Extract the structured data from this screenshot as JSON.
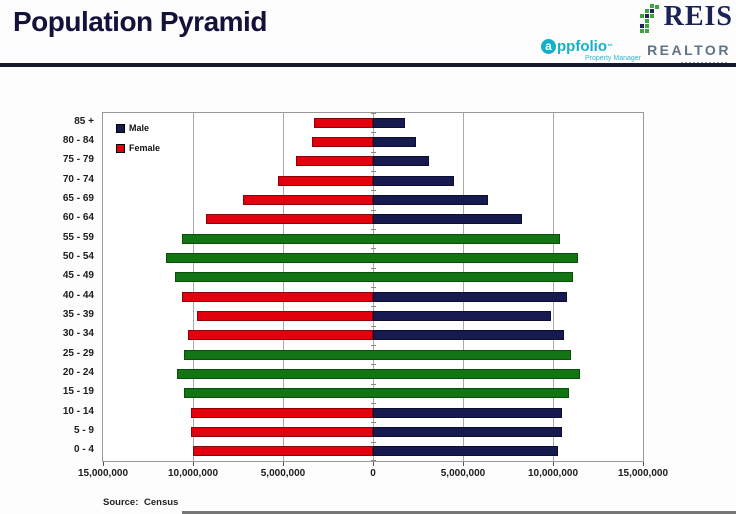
{
  "header": {
    "title": "Population Pyramid",
    "logos": {
      "reis": "REIS",
      "appfolio": "ppfolio",
      "appfolio_a": "a",
      "appfolio_tm": "™",
      "appfolio_sub": "Property Manager",
      "realtor": "REALTOR"
    }
  },
  "legend": {
    "male": "Male",
    "female": "Female"
  },
  "source": "Source: Census",
  "chart_data": {
    "type": "bar",
    "subtype": "population-pyramid",
    "title": "Population Pyramid",
    "orientation": "horizontal",
    "categories": [
      "85 +",
      "80 - 84",
      "75 - 79",
      "70 - 74",
      "65 - 69",
      "60 - 64",
      "55 - 59",
      "50 - 54",
      "45 - 49",
      "40 - 44",
      "35 - 39",
      "30 - 34",
      "25 - 29",
      "20 - 24",
      "15 - 19",
      "10 - 14",
      "5 - 9",
      "0 - 4"
    ],
    "series": [
      {
        "name": "Male",
        "side": "right",
        "color": "#161a4e",
        "values": [
          1800000,
          2400000,
          3100000,
          4500000,
          6400000,
          8300000,
          10400000,
          11400000,
          11100000,
          10800000,
          9900000,
          10600000,
          11000000,
          11500000,
          10900000,
          10500000,
          10500000,
          10300000
        ]
      },
      {
        "name": "Female",
        "side": "left",
        "color": "#e3000e",
        "values": [
          3300000,
          3400000,
          4300000,
          5300000,
          7200000,
          9300000,
          10600000,
          11500000,
          11000000,
          10600000,
          9800000,
          10300000,
          10500000,
          10900000,
          10500000,
          10100000,
          10100000,
          10000000
        ]
      }
    ],
    "highlighted_categories": [
      "55 - 59",
      "50 - 54",
      "45 - 49",
      "25 - 29",
      "20 - 24",
      "15 - 19"
    ],
    "highlight_color": "#137413",
    "xlim": [
      -15000000,
      15000000
    ],
    "x_tick_values": [
      -15000000,
      -10000000,
      -5000000,
      0,
      5000000,
      10000000,
      15000000
    ],
    "x_tick_labels": [
      "15,000,000",
      "10,000,000",
      "5,000,000",
      "0",
      "5,000,000",
      "10,000,000",
      "15,000,000"
    ],
    "grid": "vertical-on",
    "legend_position": "top-left-inside",
    "source": "Source: Census"
  }
}
